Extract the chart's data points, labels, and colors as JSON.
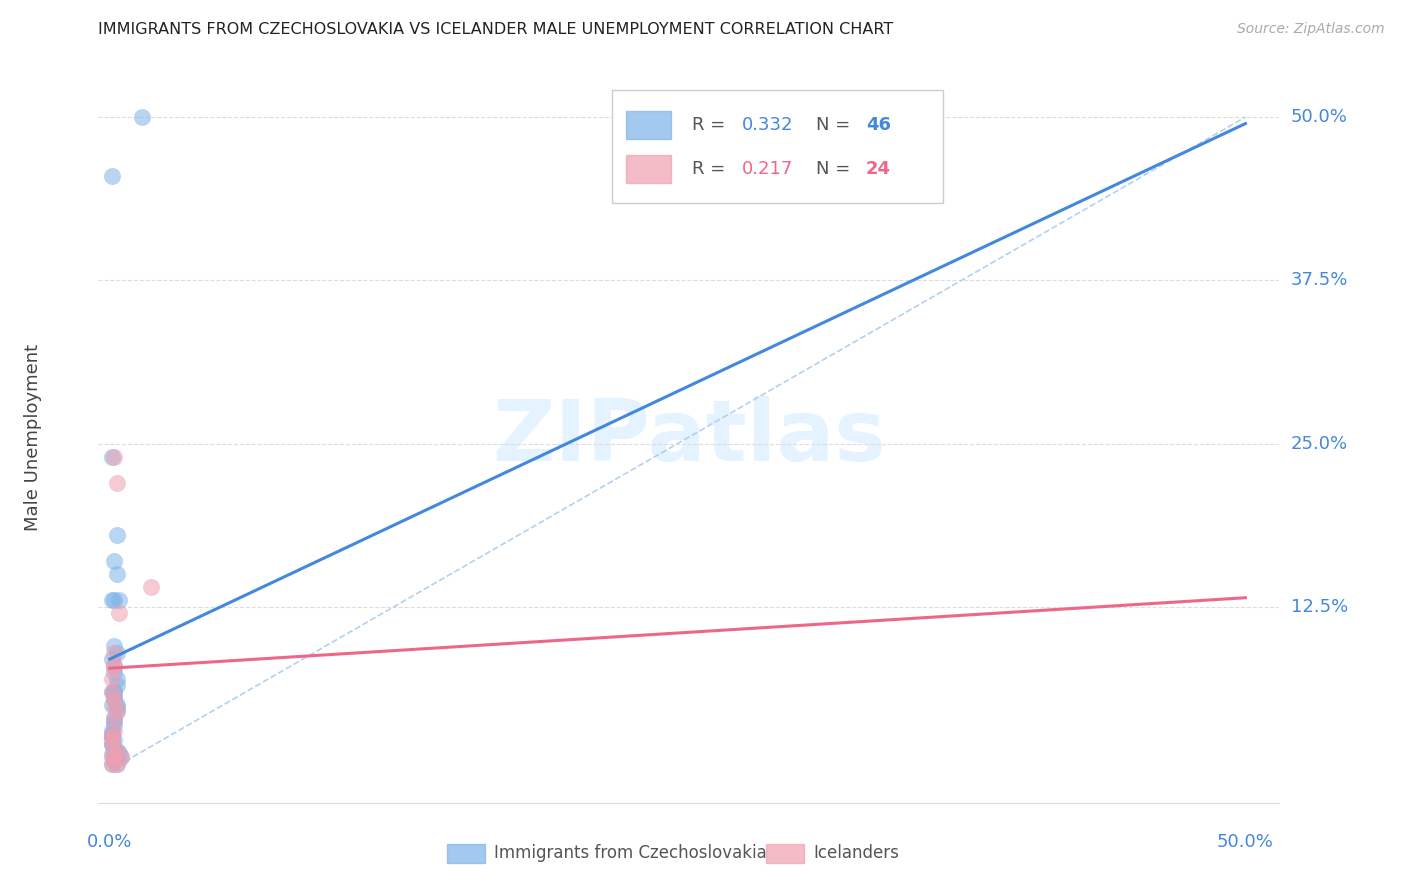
{
  "title": "IMMIGRANTS FROM CZECHOSLOVAKIA VS ICELANDER MALE UNEMPLOYMENT CORRELATION CHART",
  "source": "Source: ZipAtlas.com",
  "ylabel": "Male Unemployment",
  "ytick_labels": [
    "50.0%",
    "37.5%",
    "25.0%",
    "12.5%"
  ],
  "ytick_values": [
    0.5,
    0.375,
    0.25,
    0.125
  ],
  "xtick_labels": [
    "0.0%",
    "50.0%"
  ],
  "xtick_values": [
    0.0,
    0.5
  ],
  "xlim": [
    -0.005,
    0.515
  ],
  "ylim": [
    -0.025,
    0.535
  ],
  "plot_xlim": [
    0.0,
    0.5
  ],
  "plot_ylim": [
    0.0,
    0.52
  ],
  "blue_fill": "#7EB3E8",
  "pink_fill": "#F0A0B0",
  "blue_line": "#4488DD",
  "pink_line": "#EE6688",
  "dash_line": "#AACCEE",
  "grid_color": "#DDDDDD",
  "legend_R_blue": "0.332",
  "legend_N_blue": "46",
  "legend_R_pink": "0.217",
  "legend_N_pink": "24",
  "watermark": "ZIPatlas",
  "blue_line_x0": 0.0,
  "blue_line_y0": 0.085,
  "blue_line_x1": 0.5,
  "blue_line_y1": 0.495,
  "pink_line_x0": 0.0,
  "pink_line_y0": 0.078,
  "pink_line_x1": 0.5,
  "pink_line_y1": 0.132,
  "blue_scatter_x": [
    0.001,
    0.002,
    0.001,
    0.002,
    0.003,
    0.002,
    0.001,
    0.001,
    0.003,
    0.002,
    0.002,
    0.003,
    0.003,
    0.001,
    0.002,
    0.002,
    0.003,
    0.004,
    0.002,
    0.002,
    0.001,
    0.001,
    0.003,
    0.002,
    0.001,
    0.002,
    0.003,
    0.003,
    0.002,
    0.002,
    0.001,
    0.003,
    0.004,
    0.001,
    0.003,
    0.005,
    0.002,
    0.001,
    0.001,
    0.002,
    0.001,
    0.002,
    0.014,
    0.003,
    0.001,
    0.002
  ],
  "blue_scatter_y": [
    0.05,
    0.075,
    0.06,
    0.08,
    0.09,
    0.04,
    0.03,
    0.025,
    0.045,
    0.06,
    0.055,
    0.065,
    0.07,
    0.02,
    0.015,
    0.035,
    0.015,
    0.013,
    0.06,
    0.13,
    0.13,
    0.24,
    0.18,
    0.16,
    0.085,
    0.095,
    0.15,
    0.01,
    0.01,
    0.008,
    0.025,
    0.05,
    0.13,
    0.02,
    0.048,
    0.01,
    0.007,
    0.005,
    0.012,
    0.023,
    0.455,
    0.055,
    0.5,
    0.005,
    0.028,
    0.038
  ],
  "pink_scatter_x": [
    0.001,
    0.001,
    0.002,
    0.002,
    0.002,
    0.002,
    0.001,
    0.002,
    0.003,
    0.002,
    0.003,
    0.001,
    0.002,
    0.001,
    0.002,
    0.004,
    0.002,
    0.003,
    0.005,
    0.002,
    0.001,
    0.001,
    0.018,
    0.003
  ],
  "pink_scatter_y": [
    0.06,
    0.07,
    0.09,
    0.08,
    0.055,
    0.04,
    0.025,
    0.05,
    0.045,
    0.03,
    0.015,
    0.01,
    0.013,
    0.02,
    0.08,
    0.12,
    0.24,
    0.22,
    0.01,
    0.008,
    0.005,
    0.025,
    0.14,
    0.005
  ]
}
